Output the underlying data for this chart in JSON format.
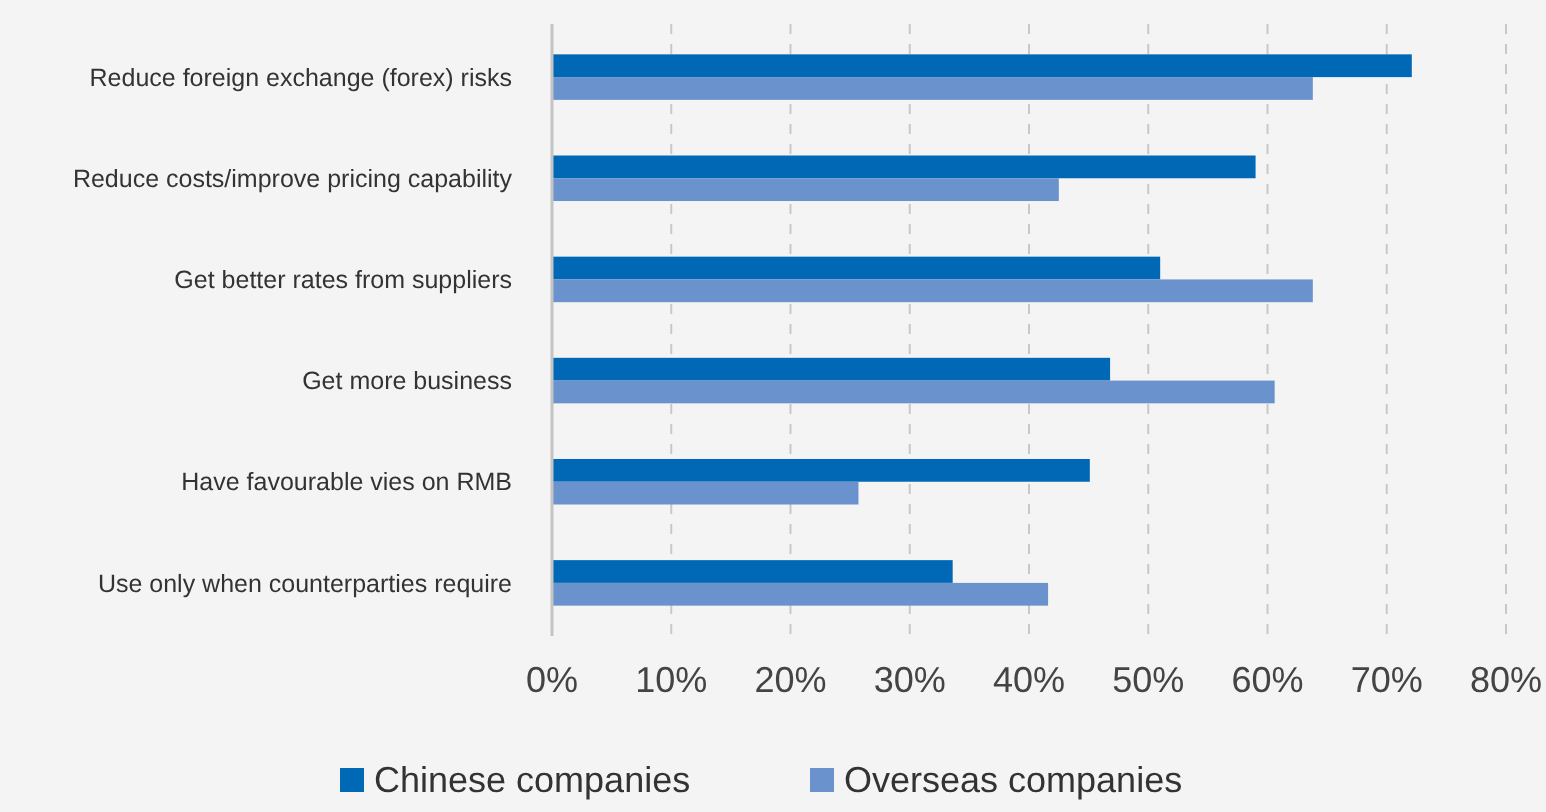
{
  "chart_data": {
    "type": "bar",
    "orientation": "horizontal",
    "categories": [
      "Reduce foreign exchange (forex) risks",
      "Reduce costs/improve pricing capability",
      "Get better rates from suppliers",
      "Get more business",
      "Have favourable vies on RMB",
      "Use only when counterparties require"
    ],
    "series": [
      {
        "name": "Chinese companies",
        "color": "#0068b5",
        "values": [
          72.1,
          59.0,
          51.0,
          46.8,
          45.1,
          33.6
        ]
      },
      {
        "name": "Overseas companies",
        "color": "#6a92cc",
        "values": [
          63.8,
          42.5,
          63.8,
          60.6,
          25.7,
          41.6
        ]
      }
    ],
    "xlim": [
      0,
      80
    ],
    "xticks": [
      {
        "value": 0,
        "label": "0%"
      },
      {
        "value": 10,
        "label": "10%"
      },
      {
        "value": 20,
        "label": "20%"
      },
      {
        "value": 30,
        "label": "30%"
      },
      {
        "value": 40,
        "label": "40%"
      },
      {
        "value": 50,
        "label": "50%"
      },
      {
        "value": 60,
        "label": "60%"
      },
      {
        "value": 70,
        "label": "70%"
      },
      {
        "value": 80,
        "label": "80%"
      }
    ],
    "grid": "x",
    "legend": "bottom"
  }
}
